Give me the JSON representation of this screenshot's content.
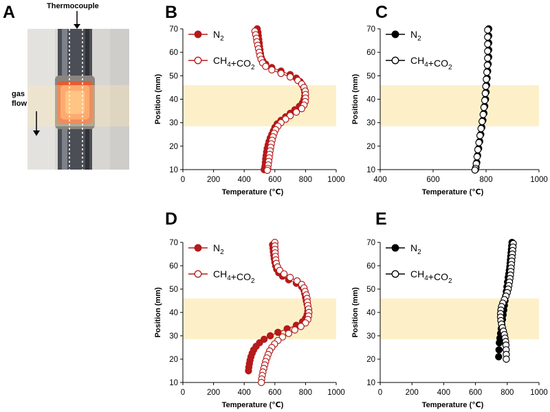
{
  "figure": {
    "panel_a": {
      "letter": "A",
      "thermocouple_label": "Thermocouple",
      "gas_flow_label_1": "gas",
      "gas_flow_label_2": "flow"
    }
  },
  "colors": {
    "red": "#b51a1a",
    "black": "#000000",
    "band": "#fdf0c9"
  },
  "chart_data": [
    {
      "panel": "B",
      "type": "scatter",
      "xlabel": "Temperature (℃)",
      "ylabel": "Position (mm)",
      "xlim": [
        0,
        1000
      ],
      "ylim": [
        10,
        70
      ],
      "xticks": [
        0,
        200,
        400,
        600,
        800,
        1000
      ],
      "yticks": [
        10,
        20,
        30,
        40,
        50,
        60,
        70
      ],
      "highlight_band_y": [
        28.5,
        46
      ],
      "legend_position": "top-right",
      "series": [
        {
          "name": "N2",
          "color": "red",
          "marker": "filled",
          "x": [
            485,
            490,
            492,
            495,
            498,
            500,
            503,
            506,
            510,
            520,
            540,
            580,
            640,
            700,
            740,
            765,
            780,
            790,
            795,
            795,
            790,
            780,
            760,
            730,
            700,
            670,
            640,
            615,
            600,
            590,
            580,
            570,
            562,
            556,
            550,
            546,
            543,
            540,
            538,
            536,
            534,
            530
          ],
          "y": [
            70,
            68.5,
            67,
            65.5,
            64,
            62.5,
            61,
            59.5,
            58,
            56.5,
            55,
            53.5,
            52,
            50.5,
            49,
            47.5,
            46,
            44.5,
            43,
            41.5,
            40,
            38.5,
            37,
            35.5,
            34,
            32.5,
            31,
            29.5,
            28,
            26.5,
            25,
            23.5,
            22,
            20.5,
            19,
            17.5,
            16,
            14.5,
            13,
            11.5,
            10.5,
            10
          ]
        },
        {
          "name": "CH4+CO2",
          "color": "red",
          "marker": "open",
          "x": [
            470,
            475,
            480,
            483,
            488,
            493,
            498,
            503,
            510,
            520,
            540,
            580,
            640,
            700,
            750,
            775,
            790,
            798,
            800,
            800,
            798,
            790,
            775,
            740,
            700,
            670,
            640,
            620,
            605,
            595,
            588,
            582,
            577,
            573,
            569,
            566,
            563,
            560,
            557,
            554,
            551
          ],
          "y": [
            69,
            67.5,
            66,
            64.5,
            63,
            61.5,
            60,
            58.5,
            57,
            55.5,
            54,
            52.5,
            51,
            49.5,
            48,
            46.5,
            45,
            43.5,
            42,
            40.5,
            39,
            37.5,
            36,
            34.5,
            33,
            31.5,
            30,
            28.5,
            27,
            25.5,
            24,
            22.5,
            21,
            19.5,
            18,
            16.5,
            15,
            13.5,
            12,
            10.5,
            9.7
          ]
        }
      ]
    },
    {
      "panel": "C",
      "type": "scatter",
      "xlabel": "Temperature (℃)",
      "ylabel": "Position (mm)",
      "xlim": [
        400,
        1000
      ],
      "ylim": [
        10,
        70
      ],
      "xticks": [
        400,
        600,
        800,
        1000
      ],
      "yticks": [
        10,
        20,
        30,
        40,
        50,
        60,
        70
      ],
      "highlight_band_y": [
        28.5,
        46
      ],
      "legend_position": "top-right",
      "series": [
        {
          "name": "N2",
          "color": "black",
          "marker": "filled",
          "x": [
            810,
            810,
            810,
            810,
            810,
            808,
            806,
            804,
            802,
            800,
            798,
            795,
            792,
            788,
            784,
            780,
            776,
            772,
            768,
            765,
            762,
            760
          ],
          "y": [
            70,
            67,
            64,
            61,
            58,
            55,
            52,
            49,
            46,
            43,
            40,
            37,
            34,
            31,
            28,
            25,
            22,
            19,
            16,
            13,
            11,
            10
          ]
        },
        {
          "name": "CH4+CO2",
          "color": "black",
          "marker": "open",
          "x": [
            806,
            806,
            806,
            806,
            806,
            805,
            803,
            801,
            799,
            797,
            795,
            792,
            789,
            785,
            781,
            777,
            773,
            769,
            766,
            763,
            760,
            758
          ],
          "y": [
            69.5,
            66.5,
            63.5,
            60.5,
            57.5,
            54.5,
            51.5,
            48.5,
            45.5,
            42.5,
            39.5,
            36.5,
            33.5,
            30.5,
            27.5,
            24.5,
            21.5,
            18.5,
            15.5,
            12.5,
            10.5,
            9.8
          ]
        }
      ]
    },
    {
      "panel": "D",
      "type": "scatter",
      "xlabel": "Temperature (℃)",
      "ylabel": "Position (mm)",
      "xlim": [
        0,
        1000
      ],
      "ylim": [
        10,
        70
      ],
      "xticks": [
        0,
        200,
        400,
        600,
        800,
        1000
      ],
      "yticks": [
        10,
        20,
        30,
        40,
        50,
        60,
        70
      ],
      "highlight_band_y": [
        28.5,
        46
      ],
      "legend_position": "top-right",
      "series": [
        {
          "name": "N2",
          "color": "red",
          "marker": "filled",
          "x": [
            585,
            588,
            590,
            593,
            596,
            600,
            605,
            612,
            625,
            650,
            690,
            740,
            775,
            790,
            795,
            800,
            805,
            810,
            815,
            815,
            810,
            800,
            780,
            740,
            680,
            620,
            570,
            530,
            500,
            478,
            462,
            452,
            444,
            438,
            434,
            430,
            428
          ],
          "y": [
            69,
            67.5,
            66,
            64.5,
            63,
            61.5,
            60,
            58.5,
            57,
            55.5,
            54,
            52.5,
            51,
            49.5,
            48,
            46.5,
            45,
            43.5,
            42,
            40.5,
            39,
            37.5,
            36,
            34.5,
            33,
            31.5,
            30,
            28.5,
            27,
            25.5,
            24,
            22.5,
            21,
            19.5,
            18,
            16.5,
            15
          ]
        },
        {
          "name": "CH4+CO2",
          "color": "red",
          "marker": "open",
          "x": [
            600,
            600,
            601,
            602,
            604,
            606,
            610,
            618,
            632,
            660,
            700,
            745,
            775,
            790,
            797,
            805,
            810,
            812,
            815,
            820,
            822,
            820,
            815,
            800,
            770,
            730,
            690,
            650,
            620,
            598,
            580,
            566,
            556,
            548,
            540,
            534,
            528,
            522,
            518,
            514,
            512
          ],
          "y": [
            70,
            68.5,
            67,
            65.5,
            64,
            62.5,
            61,
            59.5,
            58,
            56.5,
            55,
            53.5,
            52,
            50.5,
            49,
            47.5,
            46,
            44.5,
            43,
            41.5,
            40,
            38.5,
            37,
            35.5,
            34,
            32.5,
            31,
            29.5,
            28,
            26.5,
            25,
            23.5,
            22,
            20.5,
            19,
            17.5,
            16,
            14.5,
            13,
            11.5,
            10
          ]
        }
      ]
    },
    {
      "panel": "E",
      "type": "scatter",
      "xlabel": "Temperature (℃)",
      "ylabel": "Position (mm)",
      "xlim": [
        0,
        1000
      ],
      "ylim": [
        10,
        70
      ],
      "xticks": [
        0,
        200,
        400,
        600,
        800,
        1000
      ],
      "yticks": [
        10,
        20,
        30,
        40,
        50,
        60,
        70
      ],
      "highlight_band_y": [
        28.5,
        46
      ],
      "legend_position": "top-right",
      "series": [
        {
          "name": "N2",
          "color": "black",
          "marker": "filled",
          "x": [
            830,
            828,
            826,
            824,
            822,
            820,
            818,
            816,
            813,
            810,
            806,
            802,
            798,
            794,
            790,
            786,
            782,
            778,
            774,
            770,
            766,
            762,
            758,
            754,
            750,
            748,
            746
          ],
          "y": [
            70,
            68.5,
            67,
            65.5,
            64,
            62.5,
            61,
            59.5,
            58,
            56.5,
            55,
            53,
            51,
            49,
            47,
            45,
            43,
            41,
            39,
            37,
            35,
            33,
            31,
            29,
            27,
            24,
            21
          ]
        },
        {
          "name": "CH4+CO2",
          "color": "black",
          "marker": "open",
          "x": [
            838,
            836,
            834,
            832,
            830,
            828,
            826,
            824,
            822,
            820,
            817,
            814,
            810,
            806,
            800,
            792,
            782,
            772,
            764,
            760,
            758,
            758,
            760,
            764,
            770,
            776,
            782,
            786,
            790,
            792,
            793,
            794,
            794
          ],
          "y": [
            69.5,
            68,
            66.5,
            65,
            63.5,
            62,
            60.5,
            59,
            57.5,
            56,
            54.5,
            53,
            51.5,
            50,
            48.5,
            47,
            45.5,
            44,
            42.5,
            41,
            39.5,
            38,
            36.5,
            35,
            33.5,
            32,
            30.5,
            29,
            27.5,
            26,
            24,
            22,
            20
          ]
        }
      ]
    }
  ],
  "legend_labels": {
    "n2": "N2",
    "ch4co2": "CH4+CO2"
  }
}
